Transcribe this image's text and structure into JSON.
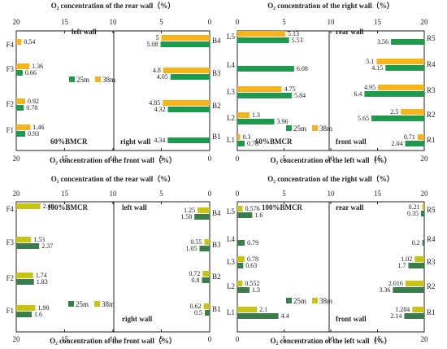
{
  "colors": {
    "green_dark": "#1e9a4c",
    "yellow": "#f4b41a",
    "green_mid": "#3a7d4a",
    "yellow_green": "#c8c414",
    "axis": "#222222"
  },
  "chart_data": [
    {
      "type": "bar",
      "orientation": "horizontal",
      "panel": "top-left",
      "xlim": [
        0,
        20
      ],
      "x_reversed": true,
      "top_title": "O₂ concentration of the rear wall（%）",
      "bottom_title": "O₂ concentration of the front wall（%）",
      "tick_values": [
        20,
        15,
        10,
        5,
        0
      ],
      "top_ticks": [
        "20",
        "15",
        "10",
        "5",
        "0"
      ],
      "bottom_ticks": [
        "20",
        "15",
        "10",
        "5",
        "0"
      ],
      "left_half": {
        "label": "left wall",
        "categories": [
          "F4",
          "F3",
          "F2",
          "F1"
        ],
        "series": [
          {
            "name": "38m",
            "values": [
              0.54,
              1.36,
              0.92,
              1.46
            ]
          },
          {
            "name": "25m",
            "values": [
              null,
              0.66,
              0.78,
              0.93
            ]
          }
        ]
      },
      "right_half": {
        "label": "right wall",
        "categories": [
          "B4",
          "B3",
          "B2",
          "B1"
        ],
        "series": [
          {
            "name": "38m",
            "values": [
              5.0,
              4.8,
              4.85,
              null
            ]
          },
          {
            "name": "25m",
            "values": [
              5.08,
              4.05,
              4.32,
              4.34
            ]
          }
        ]
      },
      "annotation": "60%BMCR",
      "legend": {
        "placement": "right-middle",
        "items": [
          "25m",
          "38m"
        ]
      }
    },
    {
      "type": "bar",
      "orientation": "horizontal",
      "panel": "top-right",
      "top_title": "O₂ concentration of the right wall（%）",
      "bottom_title": "O₂ concentration of the left wall（%）",
      "tick_values": [
        0,
        5,
        10,
        15,
        20
      ],
      "top_ticks": [
        "0",
        "5",
        "10",
        "15",
        "20"
      ],
      "bottom_ticks": [
        "0",
        "5",
        "10",
        "15",
        "20"
      ],
      "left_half": {
        "label": "60%BMCR",
        "categories": [
          "L5",
          "L4",
          "L3",
          "L2",
          "L1"
        ],
        "series": [
          {
            "name": "38m",
            "values": [
              5.13,
              null,
              4.75,
              1.3,
              0.3
            ]
          },
          {
            "name": "25m",
            "values": [
              5.53,
              6.08,
              5.84,
              3.96,
              0.78
            ]
          }
        ]
      },
      "right_half": {
        "label_top": "rear wall",
        "label_bottom": "front wall",
        "categories": [
          "R5",
          "R4",
          "R3",
          "R2",
          "R1"
        ],
        "series": [
          {
            "name": "38m",
            "values": [
              null,
              5.1,
              4.95,
              2.5,
              0.71
            ]
          },
          {
            "name": "25m",
            "values": [
              3.56,
              4.15,
              6.4,
              5.65,
              2.04
            ]
          }
        ]
      },
      "legend": {
        "placement": "center",
        "items": [
          "25m",
          "38m"
        ]
      }
    },
    {
      "type": "bar",
      "orientation": "horizontal",
      "panel": "bottom-left",
      "top_title": "O₂ concentration of the rear wall（%）",
      "bottom_title": "O₂ concentration of the front wall（%）",
      "tick_values": [
        20,
        15,
        10,
        5,
        0
      ],
      "top_ticks": [
        "20",
        "15",
        "10",
        "5",
        "0"
      ],
      "bottom_ticks": [
        "20",
        "15",
        "10",
        "5",
        "0"
      ],
      "left_half": {
        "label": "100%BMCR",
        "categories": [
          "F4",
          "F3",
          "F2",
          "F1"
        ],
        "series": [
          {
            "name": "38m",
            "values": [
              2.49,
              1.53,
              1.74,
              1.98
            ]
          },
          {
            "name": "25m",
            "values": [
              null,
              2.37,
              1.83,
              1.6
            ]
          }
        ]
      },
      "right_half": {
        "label_top": "left wall",
        "label_bottom": "right wall",
        "categories": [
          "B4",
          "B3",
          "B2",
          "B1"
        ],
        "series": [
          {
            "name": "38m",
            "values": [
              1.25,
              0.55,
              0.72,
              0.62
            ]
          },
          {
            "name": "25m",
            "values": [
              1.58,
              1.05,
              0.8,
              0.5
            ]
          }
        ]
      },
      "legend": {
        "placement": "bottom",
        "items": [
          "25m",
          "38m"
        ]
      }
    },
    {
      "type": "bar",
      "orientation": "horizontal",
      "panel": "bottom-right",
      "top_title": "O₂ concentration of the right wall（%）",
      "bottom_title": "O₂ concentration of the left wall（%）",
      "tick_values": [
        0,
        5,
        10,
        15,
        20
      ],
      "top_ticks": [
        "0",
        "5",
        "10",
        "15",
        "20"
      ],
      "bottom_ticks": [
        "0",
        "5",
        "10",
        "15",
        "20"
      ],
      "left_half": {
        "label": "100%BMCR",
        "categories": [
          "L5",
          "L4",
          "L3",
          "L2",
          "L1"
        ],
        "series": [
          {
            "name": "38m",
            "values": [
              0.576,
              null,
              0.78,
              0.552,
              2.1
            ]
          },
          {
            "name": "25m",
            "values": [
              1.6,
              0.79,
              0.63,
              1.3,
              4.4
            ]
          }
        ]
      },
      "right_half": {
        "label_top": "rear wall",
        "label_bottom": "front wall",
        "categories": [
          "R5",
          "R4",
          "R3",
          "R2",
          "R1"
        ],
        "series": [
          {
            "name": "38m",
            "values": [
              0.21,
              null,
              1.02,
              2.016,
              1.284
            ]
          },
          {
            "name": "25m",
            "values": [
              0.35,
              0.2,
              1.7,
              3.36,
              2.14
            ]
          }
        ]
      },
      "legend": {
        "placement": "bottom",
        "items": [
          "25m",
          "38m"
        ]
      }
    }
  ]
}
